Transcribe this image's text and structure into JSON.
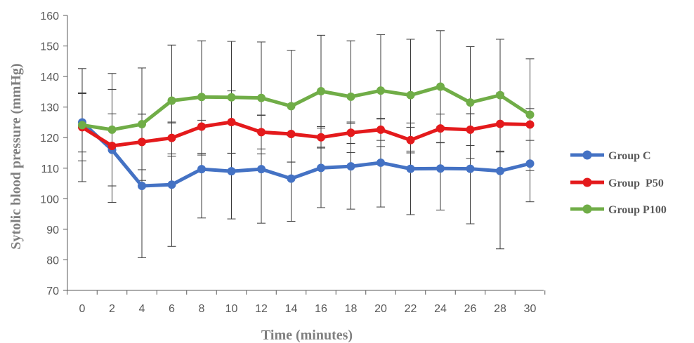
{
  "chart_data": {
    "type": "line",
    "xlabel": "Time (minutes)",
    "ylabel": "Sytolic blood pressure (mmHg)",
    "ylim": [
      70,
      160
    ],
    "yticks": [
      70,
      80,
      90,
      100,
      110,
      120,
      130,
      140,
      150,
      160
    ],
    "x": [
      0,
      2,
      4,
      6,
      8,
      10,
      12,
      14,
      16,
      18,
      20,
      22,
      24,
      26,
      28,
      30
    ],
    "grid": false,
    "legend_position": "right",
    "error_bars": true,
    "series": [
      {
        "name": "Group C",
        "color": "#4472c4",
        "values": [
          125,
          116,
          104.2,
          104.6,
          109.7,
          109,
          109.7,
          106.6,
          110.1,
          110.6,
          111.8,
          109.8,
          109.9,
          109.8,
          109.1,
          111.5
        ],
        "error": [
          9.7,
          11.8,
          23.5,
          20.2,
          16,
          15.6,
          17.7,
          14,
          13,
          14,
          14.5,
          15,
          13.6,
          18,
          25.5,
          12.5
        ]
      },
      {
        "name": "Group  P50",
        "color": "#e41a1c",
        "values": [
          123.4,
          117.3,
          118.6,
          119.9,
          123.6,
          125.1,
          121.8,
          121.2,
          120.1,
          121.6,
          122.6,
          119.2,
          123,
          122.6,
          124.5,
          124.3
        ],
        "error": [
          11,
          18.5,
          9.1,
          5.2,
          9.3,
          10.2,
          5.5,
          9.2,
          3.5,
          3.5,
          3.5,
          4.2,
          4.7,
          5.2,
          9.2,
          5.2
        ]
      },
      {
        "name": "Group P100",
        "color": "#70ad47",
        "values": [
          124.1,
          122.6,
          124.4,
          132.1,
          133.3,
          133.2,
          133,
          130.3,
          135.2,
          133.4,
          135.4,
          133.9,
          136.7,
          131.5,
          133.9,
          127.5
        ],
        "error": [
          18.5,
          18.4,
          18.4,
          18.2,
          18.4,
          18.3,
          18.3,
          18.3,
          18.3,
          18.3,
          18.3,
          18.3,
          18.3,
          18.3,
          18.3,
          18.3
        ]
      }
    ]
  }
}
